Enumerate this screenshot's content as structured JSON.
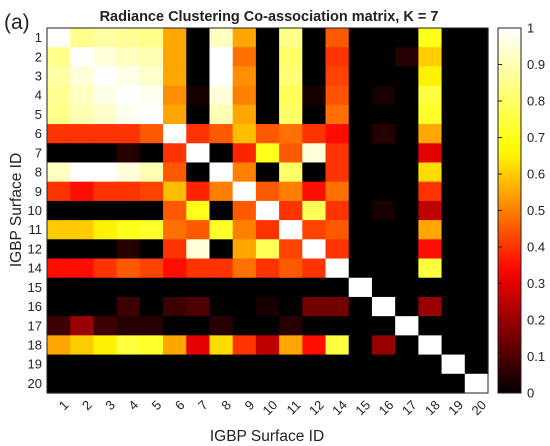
{
  "panel_label": "(a)",
  "chart_data": {
    "type": "heatmap",
    "title": "Radiance Clustering Co-association matrix, K = 7",
    "xlabel": "IGBP Surface ID",
    "ylabel": "IGBP Surface ID",
    "categories": [
      "1",
      "2",
      "3",
      "4",
      "5",
      "6",
      "7",
      "8",
      "9",
      "10",
      "11",
      "12",
      "14",
      "15",
      "16",
      "17",
      "18",
      "19",
      "20"
    ],
    "colormap": "hot",
    "colormap_stops": [
      "#000000",
      "#ff0000",
      "#ffff00",
      "#ffffff"
    ],
    "colorbar": {
      "range": [
        0,
        1
      ],
      "ticks": [
        "0",
        "0.1",
        "0.2",
        "0.3",
        "0.4",
        "0.5",
        "0.6",
        "0.7",
        "0.8",
        "0.9",
        "1"
      ]
    },
    "values": [
      [
        1.0,
        0.85,
        0.88,
        0.86,
        0.85,
        0.55,
        0.0,
        0.92,
        0.55,
        0.0,
        0.85,
        0.0,
        0.45,
        0.0,
        0.0,
        0.0,
        0.7,
        0.0,
        0.0
      ],
      [
        0.85,
        1.0,
        0.95,
        0.92,
        0.9,
        0.55,
        0.0,
        1.0,
        0.48,
        0.0,
        0.8,
        0.0,
        0.4,
        0.0,
        0.0,
        0.05,
        0.6,
        0.0,
        0.0
      ],
      [
        0.88,
        0.95,
        1.0,
        0.97,
        0.93,
        0.55,
        0.0,
        1.0,
        0.52,
        0.0,
        0.82,
        0.0,
        0.42,
        0.0,
        0.0,
        0.0,
        0.65,
        0.0,
        0.0
      ],
      [
        0.86,
        0.92,
        0.97,
        1.0,
        0.98,
        0.52,
        0.03,
        0.95,
        0.5,
        0.0,
        0.78,
        0.03,
        0.44,
        0.0,
        0.03,
        0.0,
        0.75,
        0.0,
        0.0
      ],
      [
        0.85,
        0.9,
        0.93,
        0.98,
        1.0,
        0.55,
        0.0,
        0.9,
        0.55,
        0.0,
        0.8,
        0.0,
        0.48,
        0.0,
        0.0,
        0.0,
        0.72,
        0.0,
        0.0
      ],
      [
        0.4,
        0.4,
        0.4,
        0.4,
        0.45,
        1.0,
        0.4,
        0.45,
        0.58,
        0.45,
        0.48,
        0.4,
        0.35,
        0.0,
        0.05,
        0.0,
        0.55,
        0.0,
        0.0
      ],
      [
        0.0,
        0.0,
        0.0,
        0.05,
        0.0,
        0.4,
        1.0,
        0.0,
        0.38,
        0.7,
        0.45,
        0.95,
        0.4,
        0.0,
        0.0,
        0.0,
        0.3,
        0.0,
        0.0
      ],
      [
        0.92,
        1.0,
        1.0,
        0.95,
        0.9,
        0.45,
        0.0,
        1.0,
        0.5,
        0.0,
        0.8,
        0.0,
        0.4,
        0.0,
        0.0,
        0.0,
        0.62,
        0.0,
        0.0
      ],
      [
        0.4,
        0.35,
        0.4,
        0.4,
        0.42,
        0.58,
        0.38,
        0.5,
        1.0,
        0.45,
        0.5,
        0.35,
        0.48,
        0.0,
        0.0,
        0.0,
        0.4,
        0.0,
        0.0
      ],
      [
        0.0,
        0.0,
        0.0,
        0.0,
        0.0,
        0.45,
        0.7,
        0.0,
        0.45,
        1.0,
        0.4,
        0.78,
        0.4,
        0.0,
        0.03,
        0.0,
        0.25,
        0.0,
        0.0
      ],
      [
        0.6,
        0.6,
        0.65,
        0.7,
        0.72,
        0.48,
        0.45,
        0.72,
        0.5,
        0.4,
        1.0,
        0.42,
        0.45,
        0.0,
        0.0,
        0.0,
        0.55,
        0.0,
        0.0
      ],
      [
        0.0,
        0.0,
        0.0,
        0.05,
        0.0,
        0.4,
        0.95,
        0.0,
        0.55,
        0.78,
        0.42,
        1.0,
        0.4,
        0.0,
        0.0,
        0.0,
        0.35,
        0.0,
        0.0
      ],
      [
        0.35,
        0.35,
        0.4,
        0.45,
        0.42,
        0.35,
        0.4,
        0.4,
        0.48,
        0.4,
        0.45,
        0.4,
        1.0,
        0.0,
        0.0,
        0.0,
        0.75,
        0.0,
        0.0
      ],
      [
        0.0,
        0.0,
        0.0,
        0.0,
        0.0,
        0.0,
        0.0,
        0.0,
        0.0,
        0.0,
        0.0,
        0.0,
        0.0,
        1.0,
        0.0,
        0.0,
        0.0,
        0.0,
        0.0
      ],
      [
        0.0,
        0.0,
        0.0,
        0.08,
        0.0,
        0.08,
        0.1,
        0.0,
        0.0,
        0.03,
        0.0,
        0.15,
        0.15,
        0.0,
        1.0,
        0.0,
        0.2,
        0.0,
        0.0
      ],
      [
        0.08,
        0.2,
        0.08,
        0.05,
        0.05,
        0.0,
        0.0,
        0.05,
        0.0,
        0.0,
        0.05,
        0.0,
        0.0,
        0.0,
        0.0,
        1.0,
        0.0,
        0.0,
        0.0
      ],
      [
        0.55,
        0.6,
        0.65,
        0.75,
        0.72,
        0.55,
        0.3,
        0.62,
        0.4,
        0.25,
        0.55,
        0.35,
        0.75,
        0.0,
        0.2,
        0.0,
        1.0,
        0.0,
        0.0
      ],
      [
        0.0,
        0.0,
        0.0,
        0.0,
        0.0,
        0.0,
        0.0,
        0.0,
        0.0,
        0.0,
        0.0,
        0.0,
        0.0,
        0.0,
        0.0,
        0.0,
        0.0,
        1.0,
        0.0
      ],
      [
        0.0,
        0.0,
        0.0,
        0.0,
        0.0,
        0.0,
        0.0,
        0.0,
        0.0,
        0.0,
        0.0,
        0.0,
        0.0,
        0.0,
        0.0,
        0.0,
        0.0,
        0.0,
        1.0
      ]
    ]
  }
}
